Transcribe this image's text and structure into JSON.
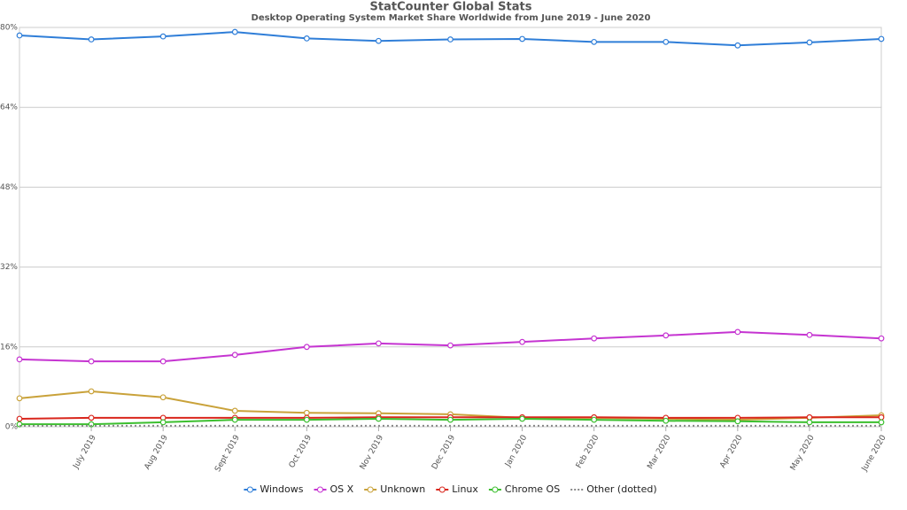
{
  "chart_data": {
    "type": "line",
    "title": "StatCounter Global Stats",
    "subtitle": "Desktop Operating System Market Share Worldwide from June 2019 - June 2020",
    "categories": [
      null,
      "July 2019",
      "Aug 2019",
      "Sept 2019",
      "Oct 2019",
      "Nov 2019",
      "Dec 2019",
      "Jan 2020",
      "Feb 2020",
      "Mar 2020",
      "Apr 2020",
      "May 2020",
      "June 2020"
    ],
    "series": [
      {
        "name": "Windows",
        "color": "#2f7ed8",
        "values": [
          78.4,
          77.6,
          78.2,
          79.1,
          77.8,
          77.3,
          77.6,
          77.7,
          77.1,
          77.1,
          76.4,
          77.0,
          77.7
        ]
      },
      {
        "name": "OS X",
        "color": "#c534d1",
        "values": [
          13.5,
          13.1,
          13.1,
          14.4,
          16.0,
          16.7,
          16.3,
          17.0,
          17.7,
          18.3,
          19.0,
          18.4,
          17.7
        ]
      },
      {
        "name": "Unknown",
        "color": "#c9a23a",
        "values": [
          5.7,
          7.1,
          5.9,
          3.2,
          2.8,
          2.7,
          2.5,
          1.8,
          1.8,
          1.6,
          1.4,
          1.8,
          2.3
        ]
      },
      {
        "name": "Linux",
        "color": "#d9261c",
        "values": [
          1.6,
          1.8,
          1.8,
          1.8,
          1.8,
          1.9,
          1.9,
          1.9,
          1.9,
          1.8,
          1.8,
          1.9,
          1.9
        ]
      },
      {
        "name": "Chrome OS",
        "color": "#3cbf2f",
        "values": [
          0.5,
          0.5,
          0.9,
          1.4,
          1.4,
          1.6,
          1.4,
          1.6,
          1.4,
          1.2,
          1.1,
          0.9,
          0.9
        ]
      },
      {
        "name": "Other (dotted)",
        "color": "#888888",
        "dotted": true,
        "values": [
          0.2,
          0.2,
          0.2,
          0.2,
          0.2,
          0.2,
          0.2,
          0.2,
          0.2,
          0.2,
          0.2,
          0.2,
          0.2
        ]
      }
    ],
    "ylim": [
      0,
      80
    ],
    "yticks": [
      {
        "value": 0,
        "label": "0%"
      },
      {
        "value": 16,
        "label": "16%"
      },
      {
        "value": 32,
        "label": "32%"
      },
      {
        "value": 48,
        "label": "48%"
      },
      {
        "value": 64,
        "label": "64%"
      },
      {
        "value": 80,
        "label": "80%"
      }
    ],
    "grid": true
  }
}
